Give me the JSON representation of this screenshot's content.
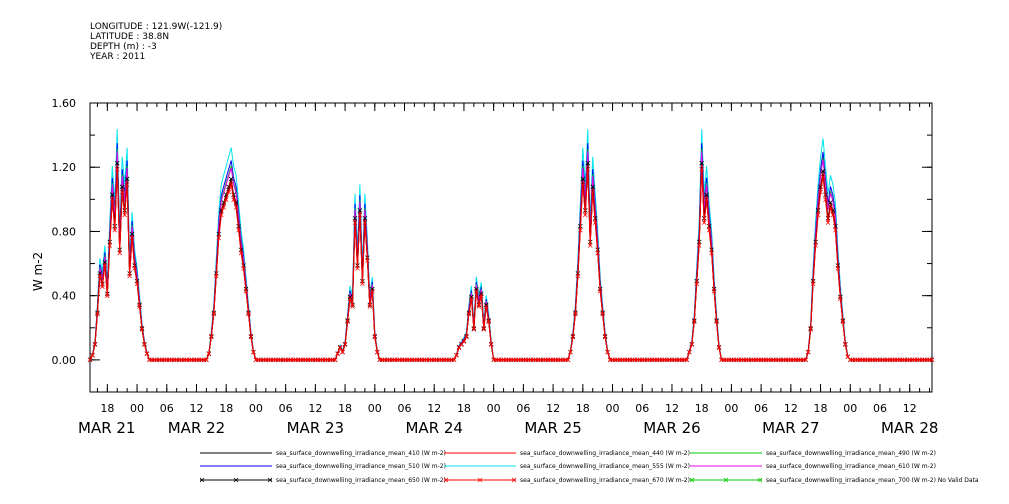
{
  "header": {
    "longitude": "LONGITUDE : 121.9W(-121.9)",
    "latitude": "LATITUDE : 38.8N",
    "depth": "DEPTH (m) : -3",
    "year": "YEAR : 2011"
  },
  "chart_data": {
    "type": "line",
    "ylabel": "W m-2",
    "ylim": [
      -0.2,
      1.6
    ],
    "yticks": [
      {
        "v": 0.0,
        "label": "0.00"
      },
      {
        "v": 0.4,
        "label": "0.40"
      },
      {
        "v": 0.8,
        "label": "0.80"
      },
      {
        "v": 1.2,
        "label": "1.20"
      },
      {
        "v": 1.6,
        "label": "1.60"
      }
    ],
    "x_unit": "hours since MAR 21 00:00",
    "xlim": [
      14.5,
      184.5
    ],
    "xticks": [
      {
        "h": 18,
        "label": "18"
      },
      {
        "h": 24,
        "label": "00"
      },
      {
        "h": 30,
        "label": "06"
      },
      {
        "h": 36,
        "label": "12"
      },
      {
        "h": 42,
        "label": "18"
      },
      {
        "h": 48,
        "label": "00"
      },
      {
        "h": 54,
        "label": "06"
      },
      {
        "h": 60,
        "label": "12"
      },
      {
        "h": 66,
        "label": "18"
      },
      {
        "h": 72,
        "label": "00"
      },
      {
        "h": 78,
        "label": "06"
      },
      {
        "h": 84,
        "label": "12"
      },
      {
        "h": 90,
        "label": "18"
      },
      {
        "h": 96,
        "label": "00"
      },
      {
        "h": 102,
        "label": "06"
      },
      {
        "h": 108,
        "label": "12"
      },
      {
        "h": 114,
        "label": "18"
      },
      {
        "h": 120,
        "label": "00"
      },
      {
        "h": 126,
        "label": "06"
      },
      {
        "h": 132,
        "label": "12"
      },
      {
        "h": 138,
        "label": "18"
      },
      {
        "h": 144,
        "label": "00"
      },
      {
        "h": 150,
        "label": "06"
      },
      {
        "h": 156,
        "label": "12"
      },
      {
        "h": 162,
        "label": "18"
      },
      {
        "h": 168,
        "label": "00"
      },
      {
        "h": 174,
        "label": "06"
      },
      {
        "h": 180,
        "label": "12"
      }
    ],
    "date_labels": [
      {
        "h": 14.5,
        "label": "MAR 21"
      },
      {
        "h": 36,
        "label": "MAR 22"
      },
      {
        "h": 60,
        "label": "MAR 23"
      },
      {
        "h": 84,
        "label": "MAR 24"
      },
      {
        "h": 108,
        "label": "MAR 25"
      },
      {
        "h": 132,
        "label": "MAR 26"
      },
      {
        "h": 156,
        "label": "MAR 27"
      },
      {
        "h": 180,
        "label": "MAR 28"
      }
    ],
    "series_profile": {
      "interval_hours": 0.5,
      "segments": [
        [
          14.5,
          0.0
        ],
        [
          15.0,
          0.03
        ],
        [
          15.5,
          0.1
        ],
        [
          16.0,
          0.3
        ],
        [
          16.5,
          0.55
        ],
        [
          17.0,
          0.48
        ],
        [
          17.5,
          0.62
        ],
        [
          18.0,
          0.42
        ],
        [
          18.5,
          0.75
        ],
        [
          19.0,
          1.05
        ],
        [
          19.5,
          0.85
        ],
        [
          20.0,
          1.25
        ],
        [
          20.5,
          0.7
        ],
        [
          21.0,
          1.1
        ],
        [
          21.5,
          0.95
        ],
        [
          22.0,
          1.15
        ],
        [
          22.5,
          0.55
        ],
        [
          23.0,
          0.8
        ],
        [
          23.5,
          0.6
        ],
        [
          24.0,
          0.5
        ],
        [
          24.5,
          0.35
        ],
        [
          25.0,
          0.2
        ],
        [
          25.5,
          0.1
        ],
        [
          26.0,
          0.04
        ],
        [
          26.5,
          0.0
        ],
        [
          38.0,
          0.0
        ],
        [
          38.5,
          0.04
        ],
        [
          39.0,
          0.15
        ],
        [
          39.5,
          0.3
        ],
        [
          40.0,
          0.55
        ],
        [
          40.5,
          0.8
        ],
        [
          41.0,
          0.95
        ],
        [
          41.5,
          1.0
        ],
        [
          42.0,
          1.05
        ],
        [
          42.5,
          1.1
        ],
        [
          43.0,
          1.15
        ],
        [
          43.5,
          1.05
        ],
        [
          44.0,
          1.0
        ],
        [
          44.5,
          0.85
        ],
        [
          45.0,
          0.7
        ],
        [
          45.5,
          0.6
        ],
        [
          46.0,
          0.45
        ],
        [
          46.5,
          0.3
        ],
        [
          47.0,
          0.15
        ],
        [
          47.5,
          0.05
        ],
        [
          48.0,
          0.0
        ],
        [
          64.0,
          0.0
        ],
        [
          64.5,
          0.04
        ],
        [
          65.0,
          0.08
        ],
        [
          65.5,
          0.05
        ],
        [
          66.0,
          0.1
        ],
        [
          66.5,
          0.25
        ],
        [
          67.0,
          0.4
        ],
        [
          67.5,
          0.35
        ],
        [
          68.0,
          0.9
        ],
        [
          68.5,
          0.6
        ],
        [
          69.0,
          0.95
        ],
        [
          69.5,
          0.5
        ],
        [
          70.0,
          0.9
        ],
        [
          70.5,
          0.65
        ],
        [
          71.0,
          0.35
        ],
        [
          71.5,
          0.45
        ],
        [
          72.0,
          0.15
        ],
        [
          72.5,
          0.05
        ],
        [
          73.0,
          0.0
        ],
        [
          88.0,
          0.0
        ],
        [
          88.5,
          0.03
        ],
        [
          89.0,
          0.08
        ],
        [
          89.5,
          0.1
        ],
        [
          90.0,
          0.12
        ],
        [
          90.5,
          0.15
        ],
        [
          91.0,
          0.3
        ],
        [
          91.5,
          0.4
        ],
        [
          92.0,
          0.2
        ],
        [
          92.5,
          0.45
        ],
        [
          93.0,
          0.35
        ],
        [
          93.5,
          0.42
        ],
        [
          94.0,
          0.2
        ],
        [
          94.5,
          0.35
        ],
        [
          95.0,
          0.25
        ],
        [
          95.5,
          0.1
        ],
        [
          96.0,
          0.0
        ],
        [
          111.0,
          0.0
        ],
        [
          111.5,
          0.05
        ],
        [
          112.0,
          0.15
        ],
        [
          112.5,
          0.3
        ],
        [
          113.0,
          0.55
        ],
        [
          113.5,
          0.85
        ],
        [
          114.0,
          1.15
        ],
        [
          114.5,
          0.95
        ],
        [
          115.0,
          1.25
        ],
        [
          115.5,
          0.75
        ],
        [
          116.0,
          1.1
        ],
        [
          116.5,
          0.9
        ],
        [
          117.0,
          0.7
        ],
        [
          117.5,
          0.45
        ],
        [
          118.0,
          0.3
        ],
        [
          118.5,
          0.15
        ],
        [
          119.0,
          0.05
        ],
        [
          119.5,
          0.0
        ],
        [
          135.0,
          0.0
        ],
        [
          135.5,
          0.05
        ],
        [
          136.0,
          0.1
        ],
        [
          136.5,
          0.25
        ],
        [
          137.0,
          0.5
        ],
        [
          137.5,
          0.75
        ],
        [
          138.0,
          1.25
        ],
        [
          138.5,
          0.9
        ],
        [
          139.0,
          1.05
        ],
        [
          139.5,
          0.85
        ],
        [
          140.0,
          0.7
        ],
        [
          140.5,
          0.45
        ],
        [
          141.0,
          0.25
        ],
        [
          141.5,
          0.08
        ],
        [
          142.0,
          0.0
        ],
        [
          159.0,
          0.0
        ],
        [
          159.5,
          0.05
        ],
        [
          160.0,
          0.2
        ],
        [
          160.5,
          0.5
        ],
        [
          161.0,
          0.75
        ],
        [
          161.5,
          0.95
        ],
        [
          162.0,
          1.1
        ],
        [
          162.5,
          1.2
        ],
        [
          163.0,
          1.05
        ],
        [
          163.5,
          0.9
        ],
        [
          164.0,
          1.0
        ],
        [
          164.5,
          0.95
        ],
        [
          165.0,
          0.85
        ],
        [
          165.5,
          0.6
        ],
        [
          166.0,
          0.4
        ],
        [
          166.5,
          0.25
        ],
        [
          167.0,
          0.1
        ],
        [
          167.5,
          0.02
        ],
        [
          168.0,
          0.0
        ],
        [
          184.5,
          0.0
        ]
      ]
    },
    "series": [
      {
        "name": "sea_surface_downwelling_irradiance_mean_410 (W m-2)",
        "color": "#000000",
        "factor": 0.96,
        "marker": "none"
      },
      {
        "name": "sea_surface_downwelling_irradiance_mean_440 (W m-2)",
        "color": "#ff0000",
        "factor": 0.97,
        "marker": "none"
      },
      {
        "name": "sea_surface_downwelling_irradiance_mean_490 (W m-2)",
        "color": "#00cc00",
        "factor": 1.05,
        "marker": "none"
      },
      {
        "name": "sea_surface_downwelling_irradiance_mean_510 (W m-2)",
        "color": "#0000ff",
        "factor": 1.08,
        "marker": "none"
      },
      {
        "name": "sea_surface_downwelling_irradiance_mean_555 (W m-2)",
        "color": "#00e5ee",
        "factor": 1.15,
        "marker": "none"
      },
      {
        "name": "sea_surface_downwelling_irradiance_mean_610 (W m-2)",
        "color": "#ee00ee",
        "factor": 1.04,
        "marker": "none"
      },
      {
        "name": "sea_surface_downwelling_irradiance_mean_650 (W m-2)",
        "color": "#000000",
        "factor": 0.98,
        "marker": "x"
      },
      {
        "name": "sea_surface_downwelling_irradiance_mean_670 (W m-2)",
        "color": "#ff0000",
        "factor": 0.95,
        "marker": "x"
      },
      {
        "name": "sea_surface_downwelling_irradiance_mean_700 (W m-2) No Valid Data",
        "color": "#00cc00",
        "factor": 0,
        "marker": "x",
        "no_data": true
      }
    ]
  }
}
